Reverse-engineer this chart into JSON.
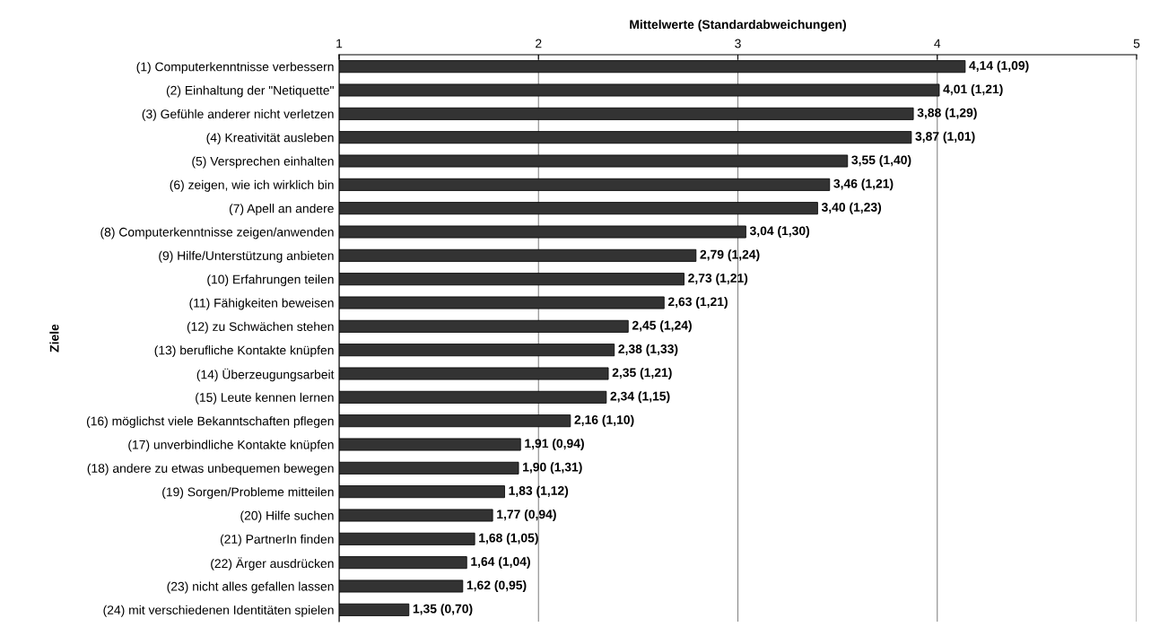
{
  "chart_data": {
    "type": "bar",
    "orientation": "horizontal",
    "xlabel": "Mittelwerte (Standardabweichungen)",
    "ylabel": "Ziele",
    "categories": [
      "(1) Computerkenntnisse verbessern",
      "(2) Einhaltung der \"Netiquette\"",
      "(3) Gefühle anderer nicht verletzen",
      "(4) Kreativität ausleben",
      "(5) Versprechen einhalten",
      "(6) zeigen, wie ich wirklich bin",
      "(7) Apell an andere",
      "(8) Computerkenntnisse zeigen/anwenden",
      "(9) Hilfe/Unterstützung anbieten",
      "(10) Erfahrungen teilen",
      "(11) Fähigkeiten beweisen",
      "(12) zu Schwächen stehen",
      "(13) berufliche Kontakte knüpfen",
      "(14) Überzeugungsarbeit",
      "(15) Leute kennen lernen",
      "(16) möglichst viele Bekanntschaften pflegen",
      "(17) unverbindliche Kontakte knüpfen",
      "(18) andere zu etwas unbequemen bewegen",
      "(19) Sorgen/Probleme mitteilen",
      "(20) Hilfe suchen",
      "(21) PartnerIn finden",
      "(22) Ärger ausdrücken",
      "(23) nicht alles gefallen lassen",
      "(24) mit verschiedenen Identitäten spielen"
    ],
    "values": [
      4.14,
      4.01,
      3.88,
      3.87,
      3.55,
      3.46,
      3.4,
      3.04,
      2.79,
      2.73,
      2.63,
      2.45,
      2.38,
      2.35,
      2.34,
      2.16,
      1.91,
      1.9,
      1.83,
      1.77,
      1.68,
      1.64,
      1.62,
      1.35
    ],
    "value_labels": [
      "4,14 (1,09)",
      "4,01 (1,21)",
      "3,88 (1,29)",
      "3,87 (1,01)",
      "3,55 (1,40)",
      "3,46 (1,21)",
      "3,40 (1,23)",
      "3,04 (1,30)",
      "2,79 (1,24)",
      "2,73 (1,21)",
      "2,63 (1,21)",
      "2,45 (1,24)",
      "2,38 (1,33)",
      "2,35 (1,21)",
      "2,34 (1,15)",
      "2,16 (1,10)",
      "1,91 (0,94)",
      "1,90 (1,31)",
      "1,83 (1,12)",
      "1,77 (0,94)",
      "1,68 (1,05)",
      "1,64 (1,04)",
      "1,62 (0,95)",
      "1,35 (0,70)"
    ],
    "color": "#333333",
    "xlim": [
      1,
      5
    ],
    "xticks": [
      1,
      2,
      3,
      4,
      5
    ],
    "grid": "x",
    "legend": false
  }
}
